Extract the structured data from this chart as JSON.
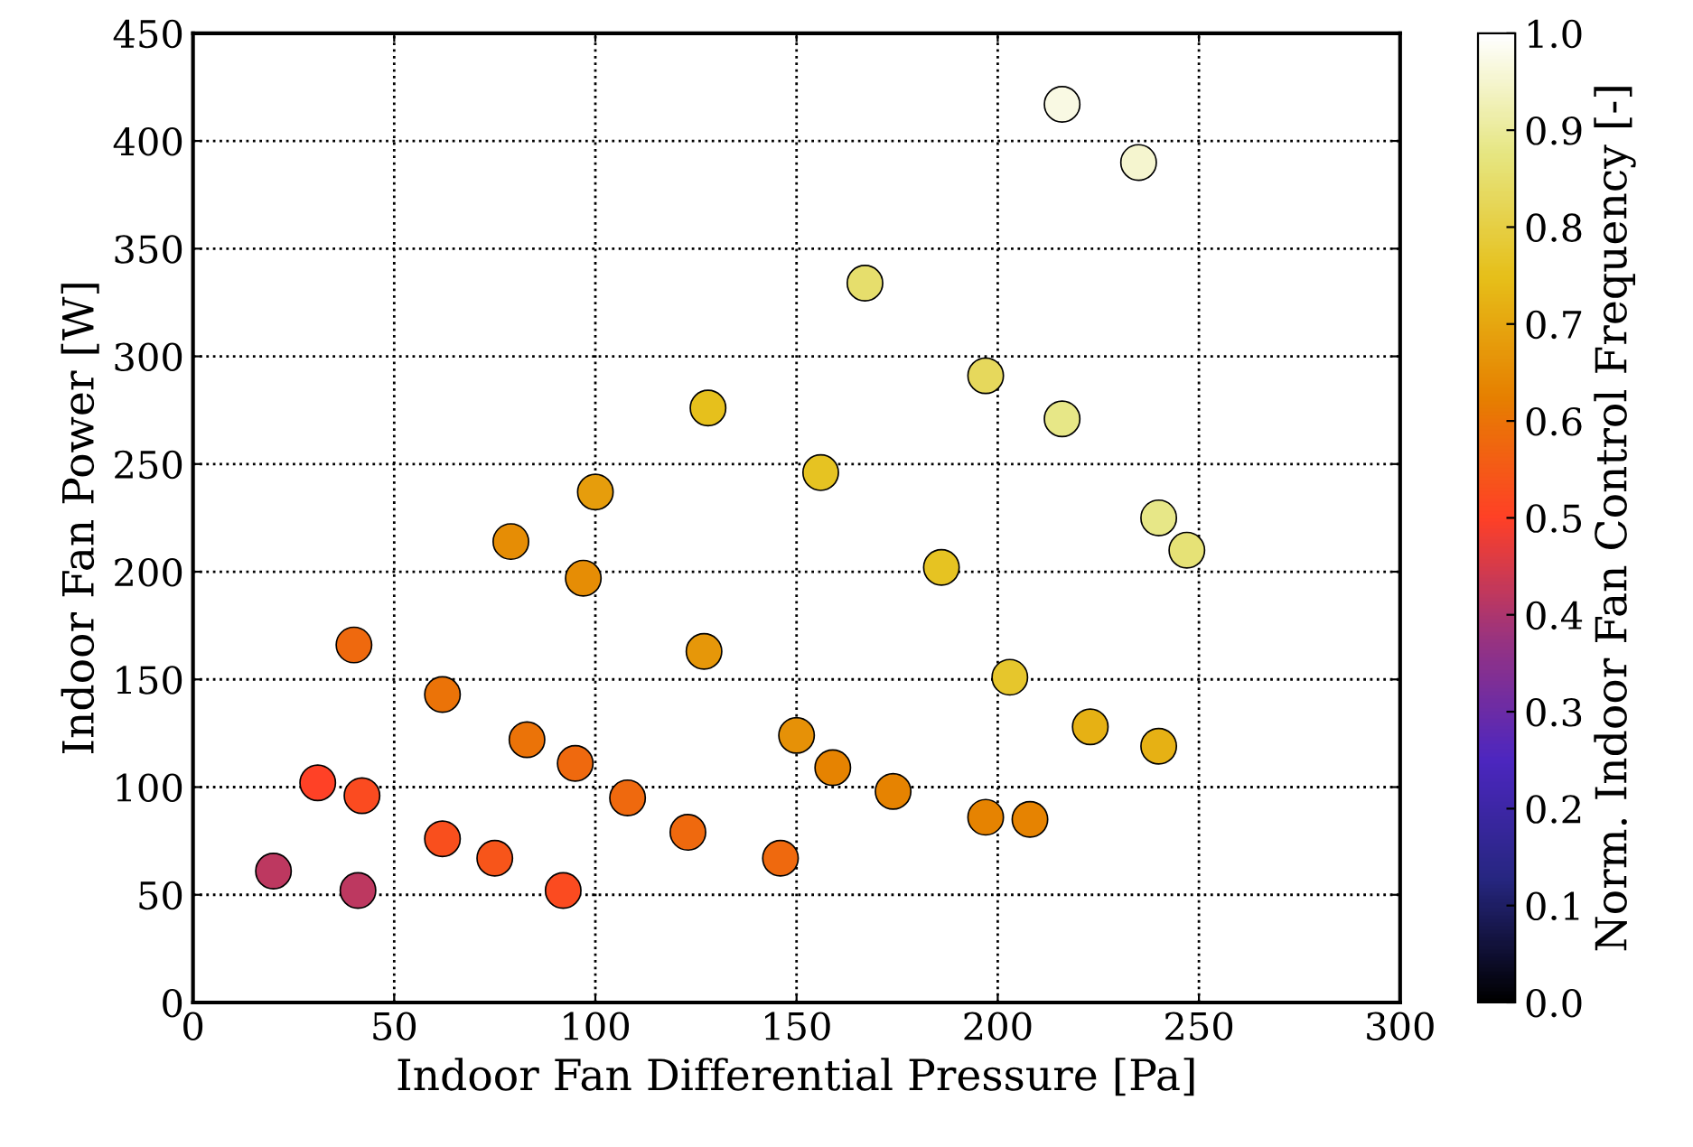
{
  "chart_data": {
    "type": "scatter",
    "xlabel": "Indoor Fan Differential Pressure [Pa]",
    "ylabel": "Indoor Fan Power [W]",
    "clabel": "Norm. Indoor Fan Control Frequency [-]",
    "x": [
      216,
      235,
      167,
      197,
      216,
      128,
      156,
      100,
      240,
      247,
      79,
      186,
      97,
      40,
      127,
      203,
      62,
      223,
      150,
      240,
      83,
      95,
      159,
      31,
      42,
      108,
      174,
      197,
      208,
      62,
      123,
      75,
      146,
      20,
      41,
      92
    ],
    "values": [
      417,
      390,
      334,
      291,
      271,
      276,
      246,
      237,
      225,
      210,
      214,
      202,
      197,
      166,
      163,
      151,
      143,
      128,
      124,
      119,
      122,
      111,
      109,
      102,
      96,
      95,
      98,
      86,
      85,
      76,
      79,
      67,
      67,
      61,
      52,
      52
    ],
    "cvalues": [
      0.97,
      0.95,
      0.85,
      0.83,
      0.88,
      0.75,
      0.76,
      0.68,
      0.88,
      0.86,
      0.65,
      0.76,
      0.65,
      0.58,
      0.67,
      0.77,
      0.6,
      0.72,
      0.66,
      0.72,
      0.6,
      0.58,
      0.63,
      0.5,
      0.52,
      0.58,
      0.63,
      0.63,
      0.63,
      0.53,
      0.58,
      0.54,
      0.58,
      0.42,
      0.42,
      0.52
    ],
    "clim": [
      0,
      1
    ],
    "cticks": [
      {
        "value": 0,
        "label": "0.0"
      },
      {
        "value": 0.1,
        "label": "0.1"
      },
      {
        "value": 0.2,
        "label": "0.2"
      },
      {
        "value": 0.3,
        "label": "0.3"
      },
      {
        "value": 0.4,
        "label": "0.4"
      },
      {
        "value": 0.5,
        "label": "0.5"
      },
      {
        "value": 0.6,
        "label": "0.6"
      },
      {
        "value": 0.7,
        "label": "0.7"
      },
      {
        "value": 0.8,
        "label": "0.8"
      },
      {
        "value": 0.9,
        "label": "0.9"
      },
      {
        "value": 1,
        "label": "1.0"
      }
    ],
    "xlim": [
      0,
      300
    ],
    "xticks": [
      0,
      50,
      100,
      150,
      200,
      250,
      300
    ],
    "ylim": [
      0,
      450
    ],
    "yticks": [
      0,
      50,
      100,
      150,
      200,
      250,
      300,
      350,
      400,
      450
    ],
    "grid": true,
    "marker": "circle"
  }
}
